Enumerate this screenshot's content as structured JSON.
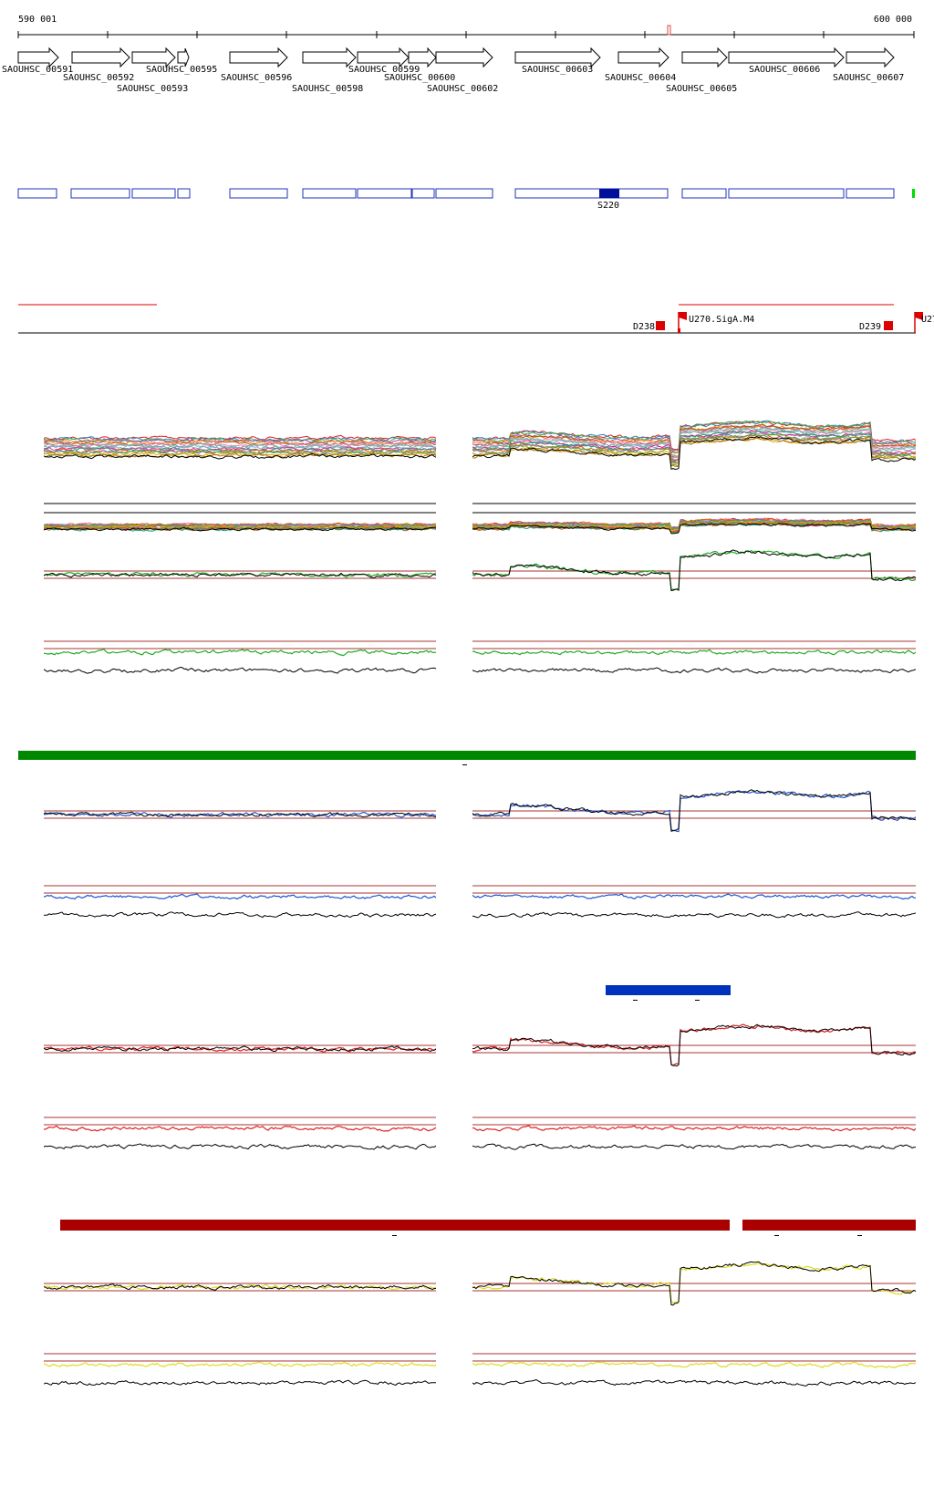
{
  "coordinates": {
    "start_label": "590 001",
    "end_label": "600 000"
  },
  "genes": [
    {
      "name": "SAOUHSC_00591"
    },
    {
      "name": "SAOUHSC_00592"
    },
    {
      "name": "SAOUHSC_00593"
    },
    {
      "name": "SAOUHSC_00595"
    },
    {
      "name": "SAOUHSC_00596"
    },
    {
      "name": "SAOUHSC_00598"
    },
    {
      "name": "SAOUHSC_00599"
    },
    {
      "name": "SAOUHSC_00600"
    },
    {
      "name": "SAOUHSC_00602"
    },
    {
      "name": "SAOUHSC_00603"
    },
    {
      "name": "SAOUHSC_00604"
    },
    {
      "name": "SAOUHSC_00605"
    },
    {
      "name": "SAOUHSC_00606"
    },
    {
      "name": "SAOUHSC_00607"
    }
  ],
  "segment_label": "S220",
  "regulatory": {
    "promoter_label": "U270.SigA.M4",
    "terminator_1": "D238",
    "terminator_2": "D239",
    "clipped_label": "U27"
  },
  "colors": {
    "gene_box": "#2233bb",
    "segment_fill": "#00109a",
    "red": "#dd0000",
    "green_bar": "#008800",
    "blue_bar": "#0033bb",
    "darkred_bar": "#aa0000",
    "green_trace": "#22aa22",
    "blue_trace": "#2255cc",
    "red_trace": "#dd2222",
    "yellow_trace": "#dddd22",
    "threshold_line": "#aa3333",
    "track_black": "#000000"
  },
  "multi_track_colors": [
    "#e41a1c",
    "#377eb8",
    "#4daf4a",
    "#984ea3",
    "#ff7f00",
    "#a65628",
    "#f781bf",
    "#999999",
    "#66c2a5",
    "#8da0cb",
    "#e7298a",
    "#1b9e77",
    "#d95f02",
    "#7570b3",
    "#66a61e",
    "#e6ab02",
    "#a6761d",
    "#000000"
  ]
}
